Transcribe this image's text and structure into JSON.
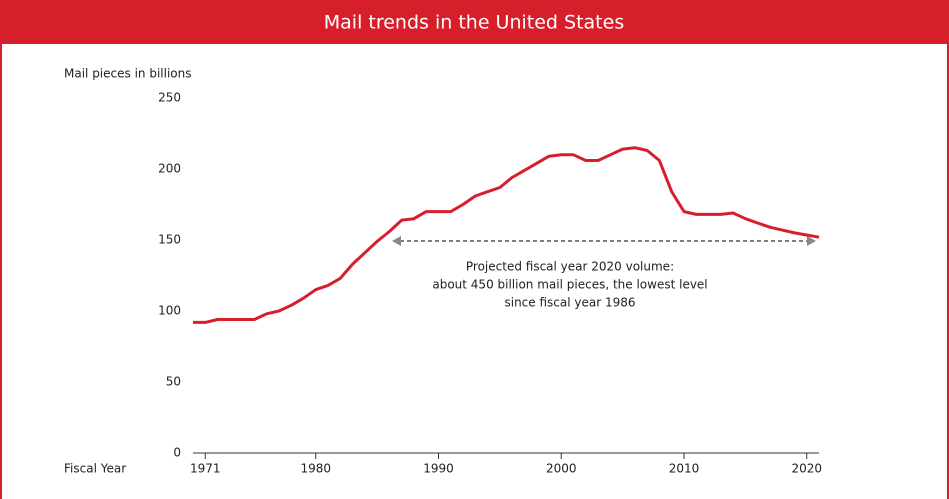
{
  "chart_data": {
    "type": "line",
    "title": "Mail trends in the United States",
    "y_label": "Mail pieces in billions",
    "x_label": "Fiscal Year",
    "annotation": [
      "Projected fiscal year 2020 volume:",
      "about 450 billion mail pieces, the lowest level",
      "since fiscal year 1986"
    ],
    "color": "#d71f2c",
    "x": [
      1970,
      1971,
      1972,
      1973,
      1974,
      1975,
      1976,
      1977,
      1978,
      1979,
      1980,
      1981,
      1982,
      1983,
      1984,
      1985,
      1986,
      1987,
      1988,
      1989,
      1990,
      1991,
      1992,
      1993,
      1994,
      1995,
      1996,
      1997,
      1998,
      1999,
      2000,
      2001,
      2002,
      2003,
      2004,
      2005,
      2006,
      2007,
      2008,
      2009,
      2010,
      2011,
      2012,
      2013,
      2014,
      2015,
      2016,
      2017,
      2018,
      2019,
      2021
    ],
    "values": [
      92,
      92,
      94,
      94,
      94,
      94,
      98,
      100,
      104,
      109,
      115,
      118,
      123,
      133,
      141,
      149,
      156,
      164,
      165,
      170,
      170,
      170,
      175,
      181,
      184,
      187,
      194,
      199,
      204,
      209,
      210,
      210,
      206,
      206,
      210,
      214,
      215,
      213,
      206,
      184,
      170,
      168,
      168,
      168,
      169,
      165,
      162,
      159,
      157,
      155,
      152
    ],
    "xlim": [
      1970,
      2021
    ],
    "xticks": [
      1971,
      1980,
      1990,
      2000,
      2010,
      2020
    ],
    "ylim": [
      0,
      250
    ],
    "yticks": [
      0,
      50,
      100,
      150,
      200,
      250
    ]
  }
}
